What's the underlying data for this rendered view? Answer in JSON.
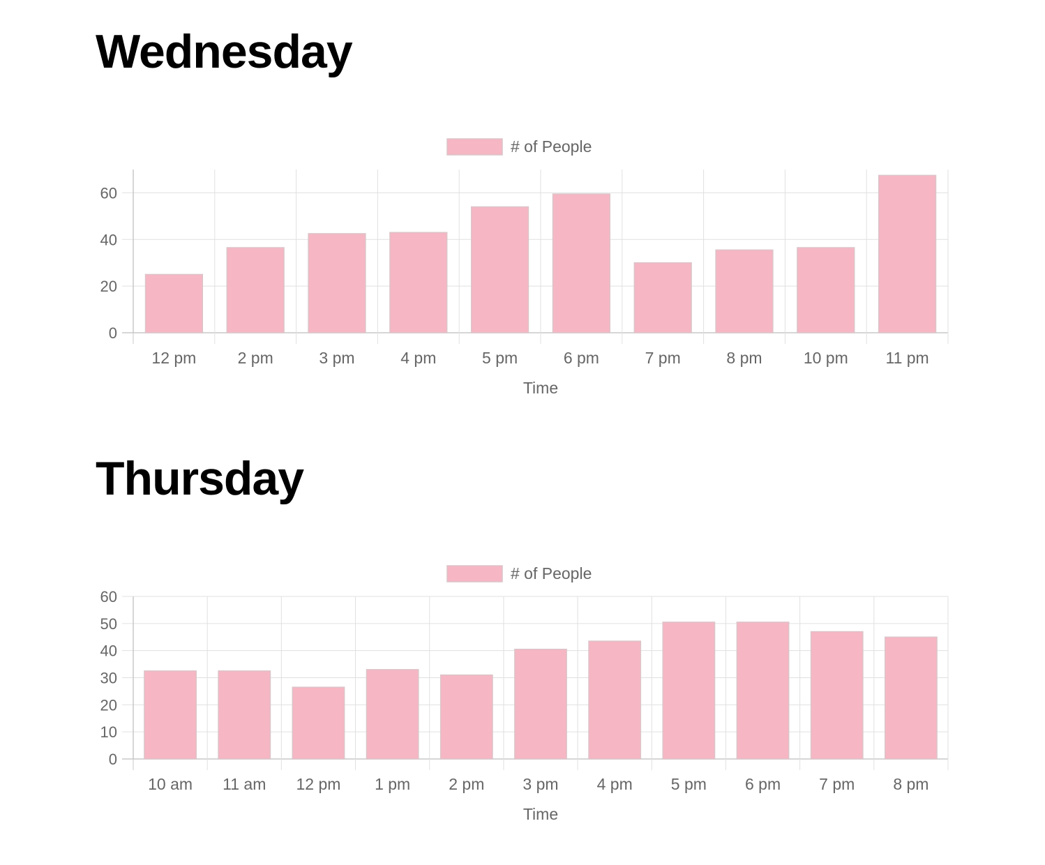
{
  "days": [
    {
      "title": "Wednesday"
    },
    {
      "title": "Thursday"
    }
  ],
  "chart_data": [
    {
      "type": "bar",
      "categories": [
        "12 pm",
        "2 pm",
        "3 pm",
        "4 pm",
        "5 pm",
        "6 pm",
        "7 pm",
        "8 pm",
        "10 pm",
        "11 pm"
      ],
      "series": [
        {
          "name": "# of People",
          "values": [
            25,
            36.5,
            42.5,
            43,
            54,
            59.5,
            30,
            35.5,
            36.5,
            67.5
          ]
        }
      ],
      "xlabel": "Time",
      "ylabel": "",
      "ylim": [
        0,
        70
      ],
      "yticks": [
        0,
        20,
        40,
        60
      ],
      "grid": true,
      "legend": "top-center",
      "colors": {
        "bar_fill": "#f6b6c3",
        "bar_border": "#dcc4c9",
        "grid": "#e0e0e0",
        "axis": "#c8c8c8",
        "text": "#666666"
      }
    },
    {
      "type": "bar",
      "categories": [
        "10 am",
        "11 am",
        "12 pm",
        "1 pm",
        "2 pm",
        "3 pm",
        "4 pm",
        "5 pm",
        "6 pm",
        "7 pm",
        "8 pm"
      ],
      "series": [
        {
          "name": "# of People",
          "values": [
            32.5,
            32.5,
            26.5,
            33,
            31,
            40.5,
            43.5,
            50.5,
            50.5,
            47,
            45
          ]
        }
      ],
      "xlabel": "Time",
      "ylabel": "",
      "ylim": [
        0,
        60
      ],
      "yticks": [
        0,
        10,
        20,
        30,
        40,
        50,
        60
      ],
      "grid": true,
      "legend": "top-center",
      "colors": {
        "bar_fill": "#f6b6c3",
        "bar_border": "#dcc4c9",
        "grid": "#e0e0e0",
        "axis": "#c8c8c8",
        "text": "#666666"
      }
    }
  ]
}
